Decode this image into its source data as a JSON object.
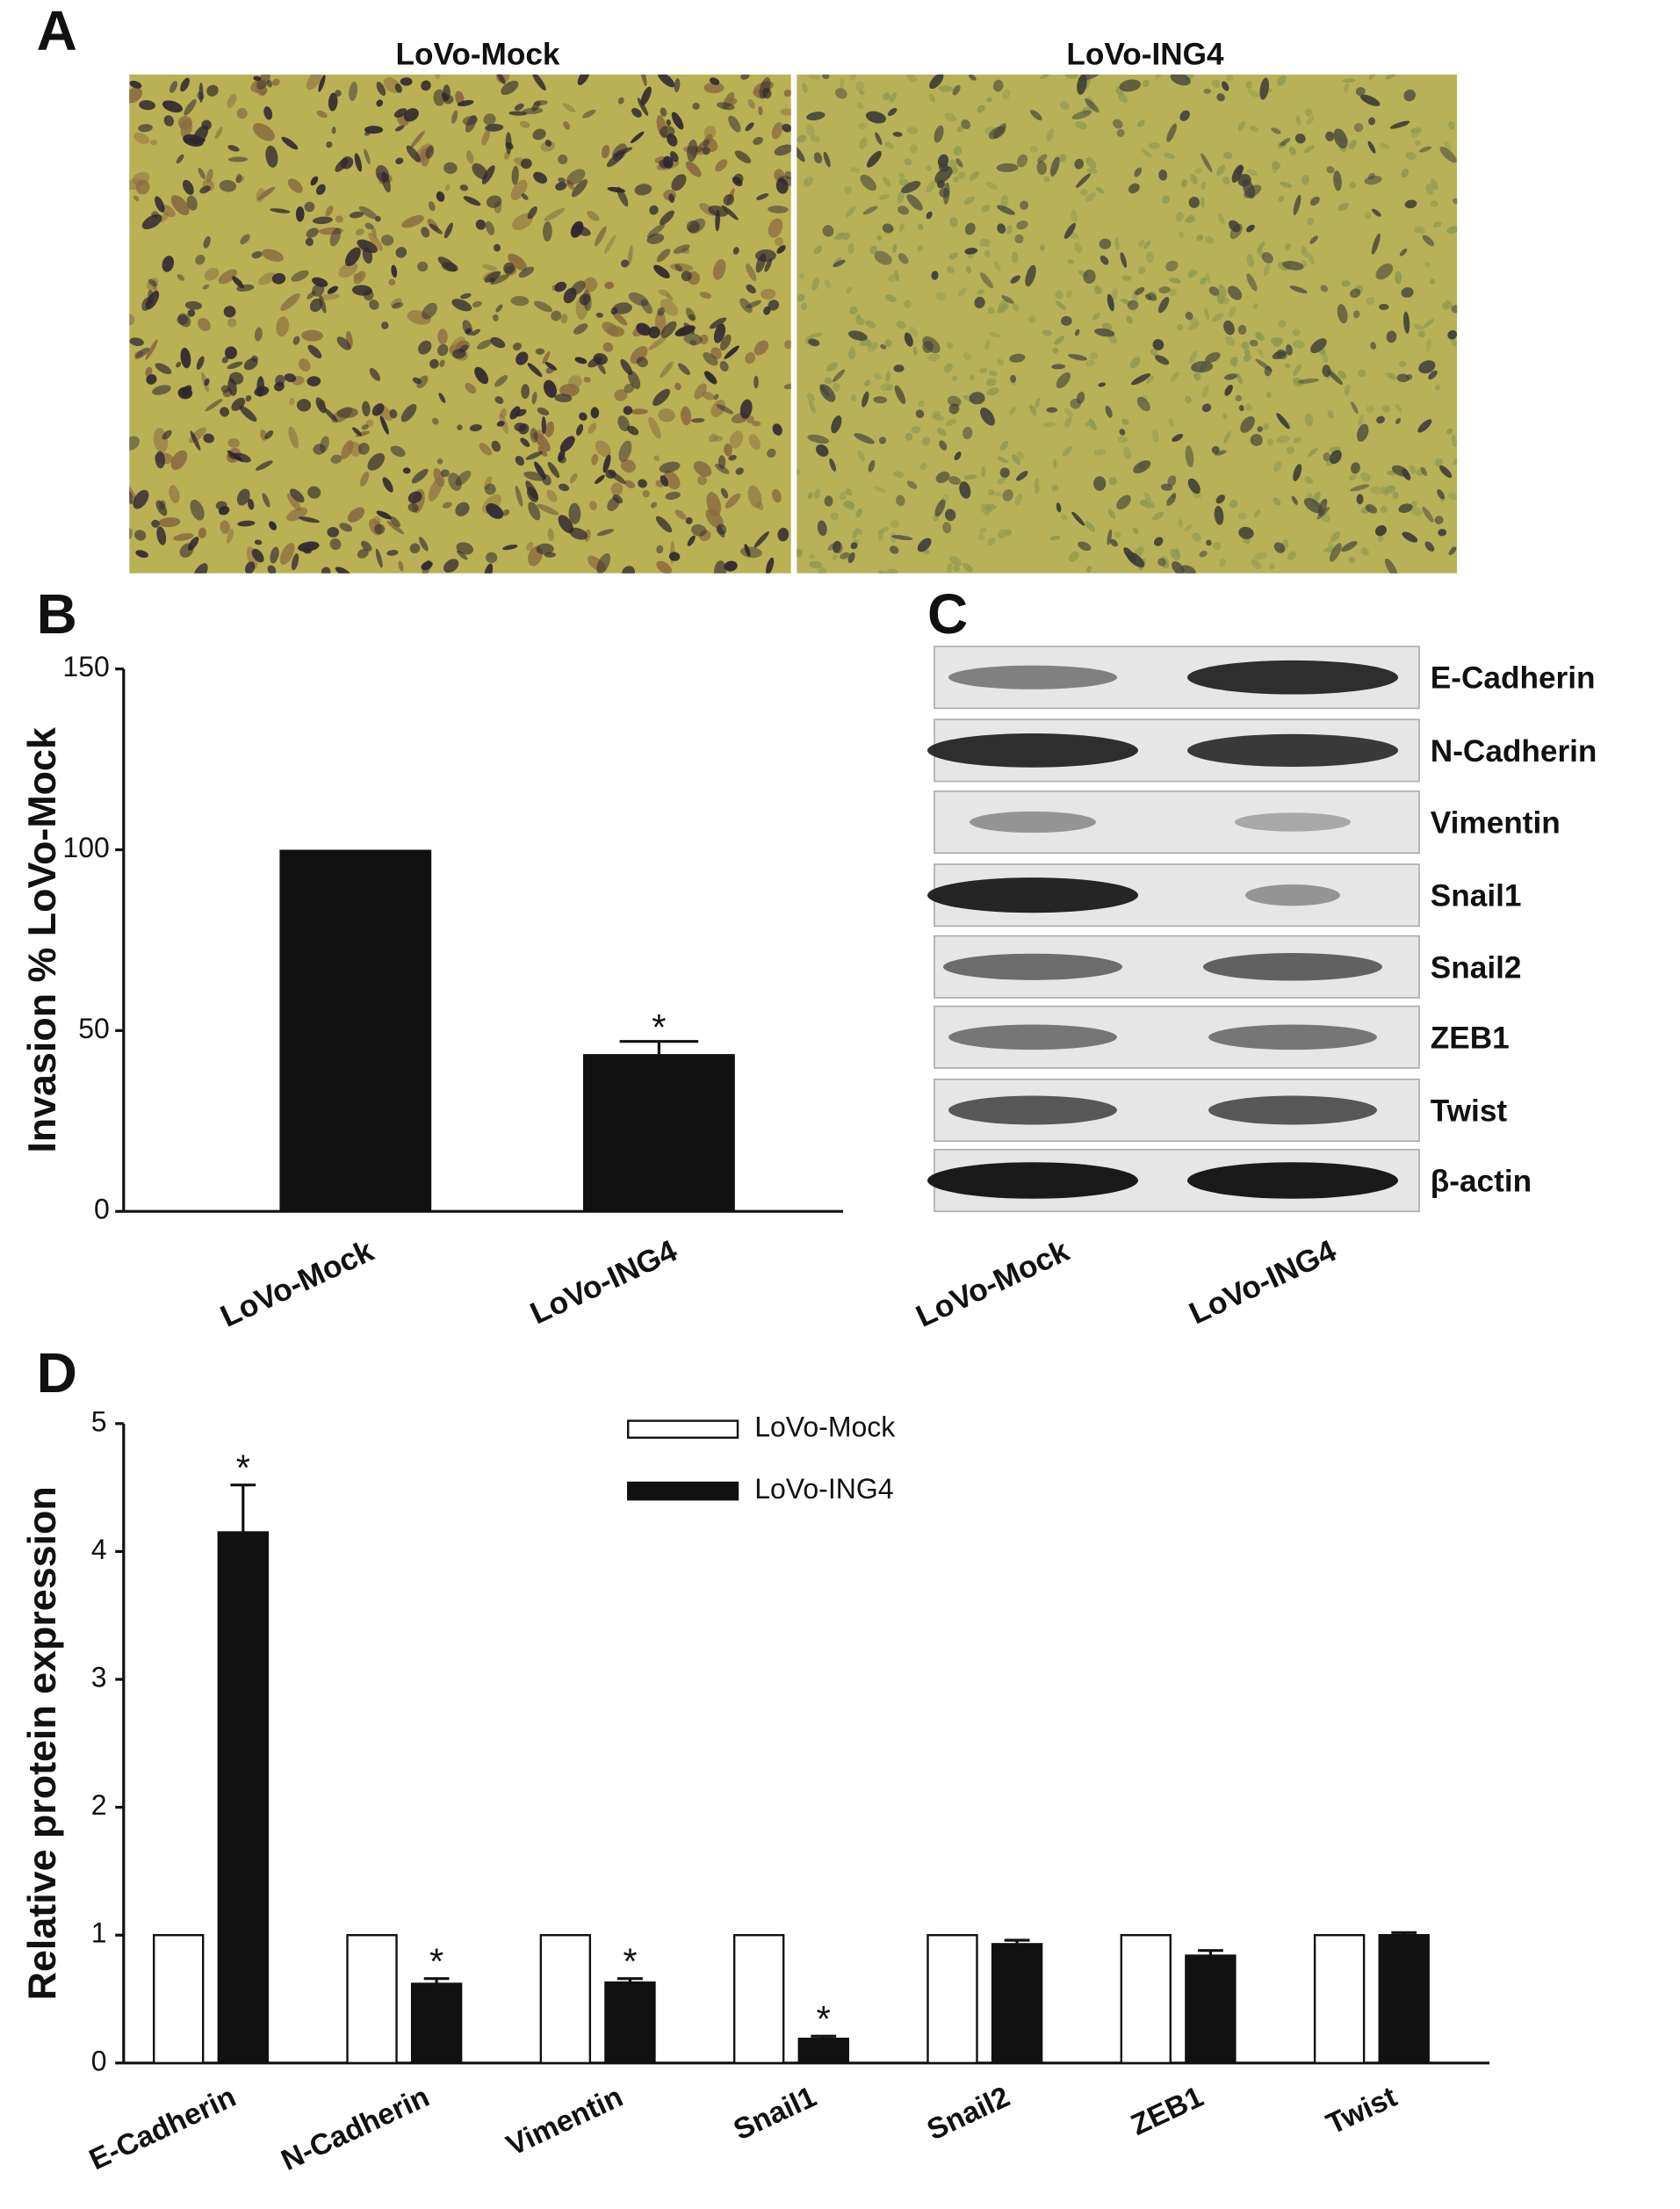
{
  "panel_a": {
    "label": "A",
    "images": [
      {
        "caption": "LoVo-Mock"
      },
      {
        "caption": "LoVo-ING4"
      }
    ]
  },
  "chart_data": [
    {
      "panel": "B",
      "type": "bar",
      "ylabel": "Invasion % LoVo-Mock",
      "categories": [
        "LoVo-Mock",
        "LoVo-ING4"
      ],
      "values": [
        100,
        43.5
      ],
      "errors": [
        null,
        3.5
      ],
      "significance": [
        null,
        "*"
      ],
      "color": "#111111",
      "ylim": [
        0,
        150
      ],
      "yticks": [
        0,
        50,
        100,
        150
      ]
    },
    {
      "panel": "D",
      "type": "grouped_bar",
      "ylabel": "Relative protein expression",
      "categories": [
        "E-Cadherin",
        "N-Cadherin",
        "Vimentin",
        "Snail1",
        "Snail2",
        "ZEB1",
        "Twist"
      ],
      "series": [
        {
          "name": "LoVo-Mock",
          "color": "#ffffff",
          "values": [
            1,
            1,
            1,
            1,
            1,
            1,
            1
          ]
        },
        {
          "name": "LoVo-ING4",
          "color": "#111111",
          "values": [
            4.15,
            0.62,
            0.63,
            0.19,
            0.93,
            0.84,
            1.0
          ],
          "errors": [
            0.37,
            0.04,
            0.03,
            0.02,
            0.03,
            0.04,
            0.02
          ],
          "significance": [
            "*",
            "*",
            "*",
            "*",
            null,
            null,
            null
          ]
        }
      ],
      "ylim": [
        0,
        5
      ],
      "yticks": [
        0,
        1,
        2,
        3,
        4,
        5
      ],
      "legend": "top-center"
    }
  ],
  "panel_c": {
    "label": "C",
    "lanes": [
      "LoVo-Mock",
      "LoVo-ING4"
    ],
    "proteins": [
      "E-Cadherin",
      "N-Cadherin",
      "Vimentin",
      "Snail1",
      "Snail2",
      "ZEB1",
      "Twist",
      "β-actin"
    ]
  }
}
